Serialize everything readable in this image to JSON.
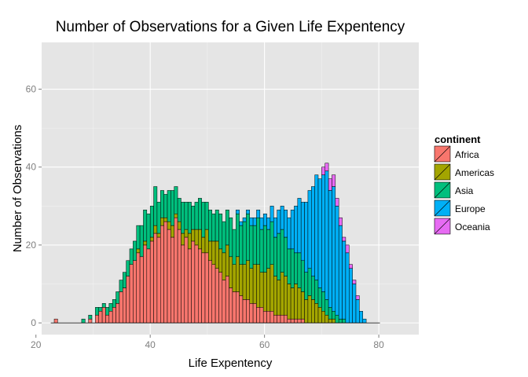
{
  "chart_data": {
    "type": "bar",
    "subtype": "stacked-histogram",
    "title": "Number of Observations for a Given Life Expentency",
    "xlabel": "Life Expentency",
    "ylabel": "Number of Observations",
    "xlim": [
      21,
      87
    ],
    "ylim": [
      -3,
      72
    ],
    "xticks": [
      20,
      40,
      60,
      80
    ],
    "yticks": [
      0,
      20,
      40,
      60
    ],
    "grid": true,
    "legend_position": "right",
    "legend_title": "continent",
    "bin_width": 0.6,
    "bin_start": 22.6,
    "series": [
      {
        "name": "Africa",
        "color": "#F8766D",
        "values": [
          0,
          1,
          0,
          0,
          0,
          0,
          0,
          0,
          0,
          0,
          0,
          1,
          0,
          2,
          3,
          4,
          2,
          3,
          4,
          5,
          8,
          9,
          12,
          15,
          16,
          18,
          17,
          20,
          19,
          21,
          23,
          22,
          25,
          26,
          24,
          22,
          27,
          24,
          20,
          22,
          19,
          21,
          20,
          19,
          18,
          18,
          16,
          15,
          14,
          13,
          11,
          12,
          9,
          8,
          8,
          7,
          6,
          6,
          5,
          5,
          4,
          4,
          3,
          3,
          3,
          2,
          2,
          2,
          2,
          1,
          1,
          1,
          1,
          1,
          0,
          0,
          0,
          0,
          0,
          0,
          0,
          0,
          0,
          0,
          0,
          0,
          0,
          0,
          0,
          0,
          0,
          0,
          0,
          0,
          0,
          0
        ]
      },
      {
        "name": "Americas",
        "color": "#A3A500",
        "values": [
          0,
          0,
          0,
          0,
          0,
          0,
          0,
          0,
          0,
          0,
          0,
          0,
          0,
          0,
          0,
          0,
          0,
          0,
          0,
          0,
          0,
          0,
          0,
          0,
          0,
          1,
          0,
          1,
          0,
          1,
          2,
          1,
          2,
          1,
          2,
          3,
          1,
          2,
          3,
          2,
          4,
          3,
          4,
          5,
          4,
          6,
          5,
          6,
          7,
          6,
          7,
          8,
          8,
          7,
          9,
          8,
          9,
          10,
          9,
          10,
          11,
          9,
          10,
          11,
          12,
          10,
          9,
          11,
          10,
          9,
          8,
          9,
          8,
          7,
          6,
          7,
          6,
          5,
          4,
          3,
          2,
          1,
          1,
          0,
          0,
          0,
          0,
          0,
          0,
          0,
          0,
          0,
          0,
          0,
          0,
          0
        ]
      },
      {
        "name": "Asia",
        "color": "#00BF7D",
        "values": [
          0,
          0,
          0,
          0,
          0,
          0,
          0,
          0,
          0,
          1,
          0,
          1,
          0,
          2,
          1,
          1,
          2,
          2,
          2,
          3,
          3,
          4,
          4,
          4,
          5,
          6,
          8,
          8,
          9,
          8,
          10,
          8,
          7,
          6,
          8,
          9,
          7,
          6,
          8,
          7,
          8,
          6,
          7,
          8,
          9,
          7,
          8,
          7,
          8,
          9,
          8,
          9,
          10,
          9,
          11,
          10,
          11,
          12,
          11,
          10,
          12,
          11,
          12,
          10,
          11,
          10,
          12,
          11,
          10,
          9,
          10,
          8,
          9,
          8,
          7,
          7,
          6,
          6,
          5,
          5,
          4,
          3,
          2,
          2,
          1,
          1,
          0,
          0,
          0,
          0,
          0,
          0,
          0,
          0,
          0,
          0
        ]
      },
      {
        "name": "Europe",
        "color": "#00B0F6",
        "values": [
          0,
          0,
          0,
          0,
          0,
          0,
          0,
          0,
          0,
          0,
          0,
          0,
          0,
          0,
          0,
          0,
          0,
          0,
          0,
          0,
          0,
          0,
          0,
          0,
          0,
          0,
          0,
          0,
          0,
          0,
          0,
          0,
          0,
          0,
          0,
          0,
          0,
          0,
          0,
          0,
          0,
          0,
          0,
          0,
          0,
          0,
          0,
          0,
          0,
          0,
          0,
          0,
          0,
          0,
          1,
          1,
          1,
          1,
          2,
          2,
          2,
          3,
          3,
          3,
          4,
          5,
          6,
          6,
          7,
          8,
          10,
          12,
          14,
          15,
          18,
          20,
          23,
          27,
          28,
          30,
          33,
          30,
          32,
          28,
          24,
          20,
          18,
          14,
          10,
          6,
          3,
          1,
          0,
          0,
          0,
          0
        ]
      },
      {
        "name": "Oceania",
        "color": "#E76BF3",
        "values": [
          0,
          0,
          0,
          0,
          0,
          0,
          0,
          0,
          0,
          0,
          0,
          0,
          0,
          0,
          0,
          0,
          0,
          0,
          0,
          0,
          0,
          0,
          0,
          0,
          0,
          0,
          0,
          0,
          0,
          0,
          0,
          0,
          0,
          0,
          0,
          0,
          0,
          0,
          0,
          0,
          0,
          0,
          0,
          0,
          0,
          0,
          0,
          0,
          0,
          0,
          0,
          0,
          0,
          0,
          0,
          0,
          0,
          0,
          0,
          0,
          0,
          0,
          0,
          0,
          0,
          0,
          0,
          0,
          0,
          0,
          0,
          0,
          0,
          0,
          0,
          0,
          0,
          0,
          0,
          2,
          2,
          3,
          3,
          2,
          2,
          1,
          2,
          1,
          1,
          1,
          0,
          0,
          0,
          0,
          0,
          0
        ]
      }
    ]
  },
  "colors": {
    "panel_background": "#E5E5E5",
    "gridline_major": "#FFFFFF",
    "gridline_minor": "#F2F2F2",
    "bar_outline": "#000000",
    "tick_label": "#7F7F7F"
  }
}
